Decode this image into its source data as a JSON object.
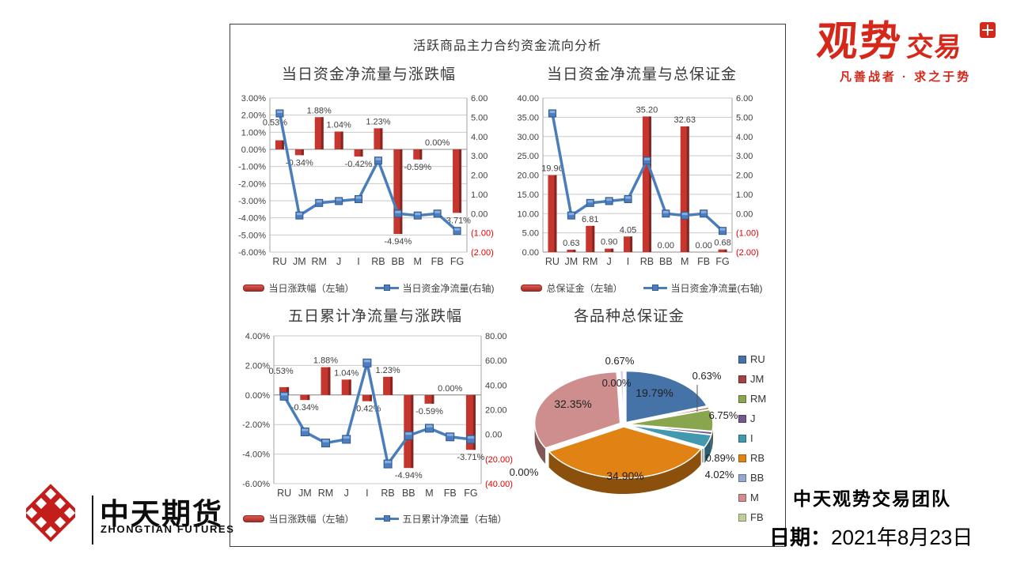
{
  "page": {
    "main_title": "活跃商品主力合约资金流向分析"
  },
  "branding": {
    "guanshi_logo_primary": "观势",
    "guanshi_logo_secondary": "交易",
    "guanshi_tagline": "凡善战者 · 求之于势",
    "zhongtian_cn": "中天期货",
    "zhongtian_en": "ZHONGTIAN FUTURES",
    "team_name": "中天观势交易团队",
    "date_label": "日期：",
    "date_value": "2021年8月23日"
  },
  "colors": {
    "bar_red": "#C5362F",
    "bar_red_dark": "#872521",
    "line_blue": "#4A7EBB",
    "brand_red": "#D5281B",
    "negative_tick_red": "#E00000",
    "text_dark": "#3F3F3F"
  },
  "chart_data": [
    {
      "type": "combo-bar-line",
      "title": "当日资金净流量与涨跌幅",
      "categories": [
        "RU",
        "JM",
        "RM",
        "J",
        "I",
        "RB",
        "BB",
        "M",
        "FB",
        "FG"
      ],
      "series": [
        {
          "name": "当日涨跌幅（左轴）",
          "chart": "bar",
          "axis": "left",
          "values": [
            0.53,
            -0.34,
            1.88,
            1.04,
            -0.42,
            1.23,
            -4.94,
            -0.59,
            0,
            -3.71
          ],
          "labels": [
            "0.53%",
            "-0.34%",
            "1.88%",
            "1.04%",
            "-0.42%",
            "1.23%",
            "-4.94%",
            "-0.59%",
            "0.00%",
            "-3.71%"
          ]
        },
        {
          "name": "当日资金净流量(右轴)",
          "chart": "line",
          "axis": "right",
          "values": [
            5.2,
            -0.1,
            0.55,
            0.65,
            0.75,
            2.75,
            0,
            -0.1,
            0,
            -0.9
          ]
        }
      ],
      "left_axis": {
        "min": -6,
        "max": 3,
        "ticks": [
          "3.00%",
          "2.00%",
          "1.00%",
          "0.00%",
          "-1.00%",
          "-2.00%",
          "-3.00%",
          "-4.00%",
          "-5.00%",
          "-6.00%"
        ]
      },
      "right_axis": {
        "min": -2,
        "max": 6,
        "ticks": [
          "6.00",
          "5.00",
          "4.00",
          "3.00",
          "2.00",
          "1.00",
          "0.00",
          "(1.00)",
          "(2.00)"
        ]
      }
    },
    {
      "type": "combo-bar-line",
      "title": "当日资金净流量与总保证金",
      "categories": [
        "RU",
        "JM",
        "RM",
        "J",
        "I",
        "RB",
        "BB",
        "M",
        "FB",
        "FG"
      ],
      "series": [
        {
          "name": "总保证金（左轴）",
          "chart": "bar",
          "axis": "left",
          "values": [
            19.96,
            0.63,
            6.81,
            0.9,
            4.05,
            35.2,
            0,
            32.63,
            0,
            0.68
          ],
          "labels": [
            "19.96",
            "0.63",
            "6.81",
            "0.90",
            "4.05",
            "35.20",
            "0.00",
            "32.63",
            "0.00",
            "0.68"
          ]
        },
        {
          "name": "当日资金净流量(右轴)",
          "chart": "line",
          "axis": "right",
          "values": [
            5.2,
            -0.1,
            0.55,
            0.65,
            0.75,
            2.75,
            0,
            -0.1,
            0,
            -0.9
          ]
        }
      ],
      "left_axis": {
        "min": 0,
        "max": 40,
        "ticks": [
          "40.00",
          "35.00",
          "30.00",
          "25.00",
          "20.00",
          "15.00",
          "10.00",
          "5.00",
          "0.00"
        ]
      },
      "right_axis": {
        "min": -2,
        "max": 6,
        "ticks": [
          "6.00",
          "5.00",
          "4.00",
          "3.00",
          "2.00",
          "1.00",
          "0.00",
          "(1.00)",
          "(2.00)"
        ]
      }
    },
    {
      "type": "combo-bar-line",
      "title": "五日累计净流量与涨跌幅",
      "categories": [
        "RU",
        "JM",
        "RM",
        "J",
        "I",
        "RB",
        "BB",
        "M",
        "FB",
        "FG"
      ],
      "series": [
        {
          "name": "当日涨跌幅（左轴）",
          "chart": "bar",
          "axis": "left",
          "values": [
            0.53,
            -0.34,
            1.88,
            1.04,
            -0.42,
            1.23,
            -4.94,
            -0.59,
            0,
            -3.71
          ],
          "labels": [
            "0.53%",
            "-0.34%",
            "1.88%",
            "1.04%",
            "-0.42%",
            "1.23%",
            "-4.94%",
            "-0.59%",
            "0.00%",
            "-3.71%"
          ]
        },
        {
          "name": "五日累计净流量（右轴）",
          "chart": "line",
          "axis": "right",
          "values": [
            31,
            2,
            -7,
            -4,
            58,
            -24,
            -1,
            5,
            -2,
            -4
          ]
        }
      ],
      "left_axis": {
        "min": -6,
        "max": 4,
        "ticks": [
          "4.00%",
          "2.00%",
          "0.00%",
          "-2.00%",
          "-4.00%",
          "-6.00%"
        ]
      },
      "right_axis": {
        "min": -40,
        "max": 80,
        "ticks": [
          "80.00",
          "60.00",
          "40.00",
          "20.00",
          "0.00",
          "(20.00)",
          "(40.00)"
        ]
      }
    },
    {
      "type": "pie",
      "title": "各品种总保证金",
      "categories": [
        "RU",
        "JM",
        "RM",
        "J",
        "I",
        "RB",
        "BB",
        "M",
        "FB",
        "FG"
      ],
      "values": [
        19.79,
        0.63,
        6.75,
        0.89,
        4.02,
        34.9,
        0,
        32.35,
        0,
        0.67
      ],
      "labels": [
        "19.79%",
        "0.63%",
        "6.75%",
        "0.89%",
        "4.02%",
        "34.90%",
        "0.00%",
        "32.35%",
        "0.00%",
        "0.67%"
      ],
      "colors": [
        "#4572A7",
        "#A5413E",
        "#89A54E",
        "#71588F",
        "#4198AF",
        "#E08214",
        "#93A9CF",
        "#CE8E8D",
        "#BFCD9A",
        "#D8D2E6"
      ],
      "legend_visible": [
        "RU",
        "JM",
        "RM",
        "J",
        "I",
        "RB",
        "BB",
        "M",
        "FB"
      ]
    }
  ]
}
